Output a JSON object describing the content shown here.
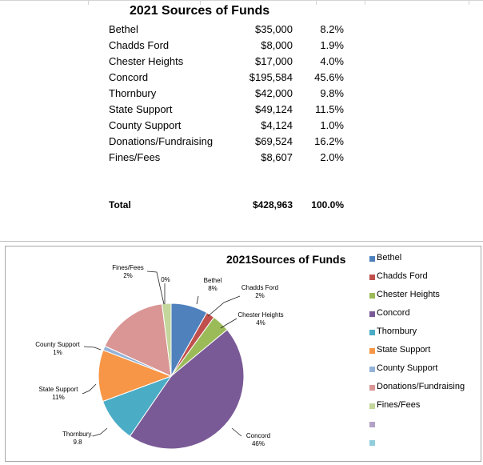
{
  "table": {
    "title": "2021 Sources of Funds",
    "rows": [
      {
        "name": "Bethel",
        "amount": "$35,000",
        "percent": "8.2%"
      },
      {
        "name": "Chadds Ford",
        "amount": "$8,000",
        "percent": "1.9%"
      },
      {
        "name": "Chester Heights",
        "amount": "$17,000",
        "percent": "4.0%"
      },
      {
        "name": "Concord",
        "amount": "$195,584",
        "percent": "45.6%"
      },
      {
        "name": "Thornbury",
        "amount": "$42,000",
        "percent": "9.8%"
      },
      {
        "name": "State Support",
        "amount": "$49,124",
        "percent": "11.5%"
      },
      {
        "name": "County Support",
        "amount": "$4,124",
        "percent": "1.0%"
      },
      {
        "name": "Donations/Fundraising",
        "amount": "$69,524",
        "percent": "16.2%"
      },
      {
        "name": "Fines/Fees",
        "amount": "$8,607",
        "percent": "2.0%"
      }
    ],
    "total": {
      "name": "Total",
      "amount": "$428,963",
      "percent": "100.0%"
    }
  },
  "chart_data": {
    "type": "pie",
    "title": "2021Sources of Funds",
    "legend_position": "right",
    "categories": [
      "Bethel",
      "Chadds Ford",
      "Chester Heights",
      "Concord",
      "Thornbury",
      "State Support",
      "County Support",
      "Donations/Fundraising",
      "Fines/Fees",
      "",
      ""
    ],
    "values": [
      35000,
      8000,
      17000,
      195584,
      42000,
      49124,
      4124,
      69524,
      8607,
      0,
      0
    ],
    "colors": [
      "#4f81bd",
      "#c0504d",
      "#9bbb59",
      "#7a5a96",
      "#4bacc6",
      "#f79646",
      "#95b3d7",
      "#d99694",
      "#c3d69b",
      "#b3a2c7",
      "#92cddc"
    ],
    "data_labels": [
      {
        "name": "Bethel",
        "value": "8%"
      },
      {
        "name": "Chadds Ford",
        "value": "2%"
      },
      {
        "name": "Chester Heights",
        "value": "4%"
      },
      {
        "name": "Concord",
        "value": "46%"
      },
      {
        "name": "Thornbury.",
        "value": "9.8"
      },
      {
        "name": "State Support",
        "value": "11%"
      },
      {
        "name": "County Support",
        "value": "1%"
      },
      {
        "name": "",
        "value": "0%"
      },
      {
        "name": "Fines/Fees",
        "value": "2%"
      }
    ]
  }
}
